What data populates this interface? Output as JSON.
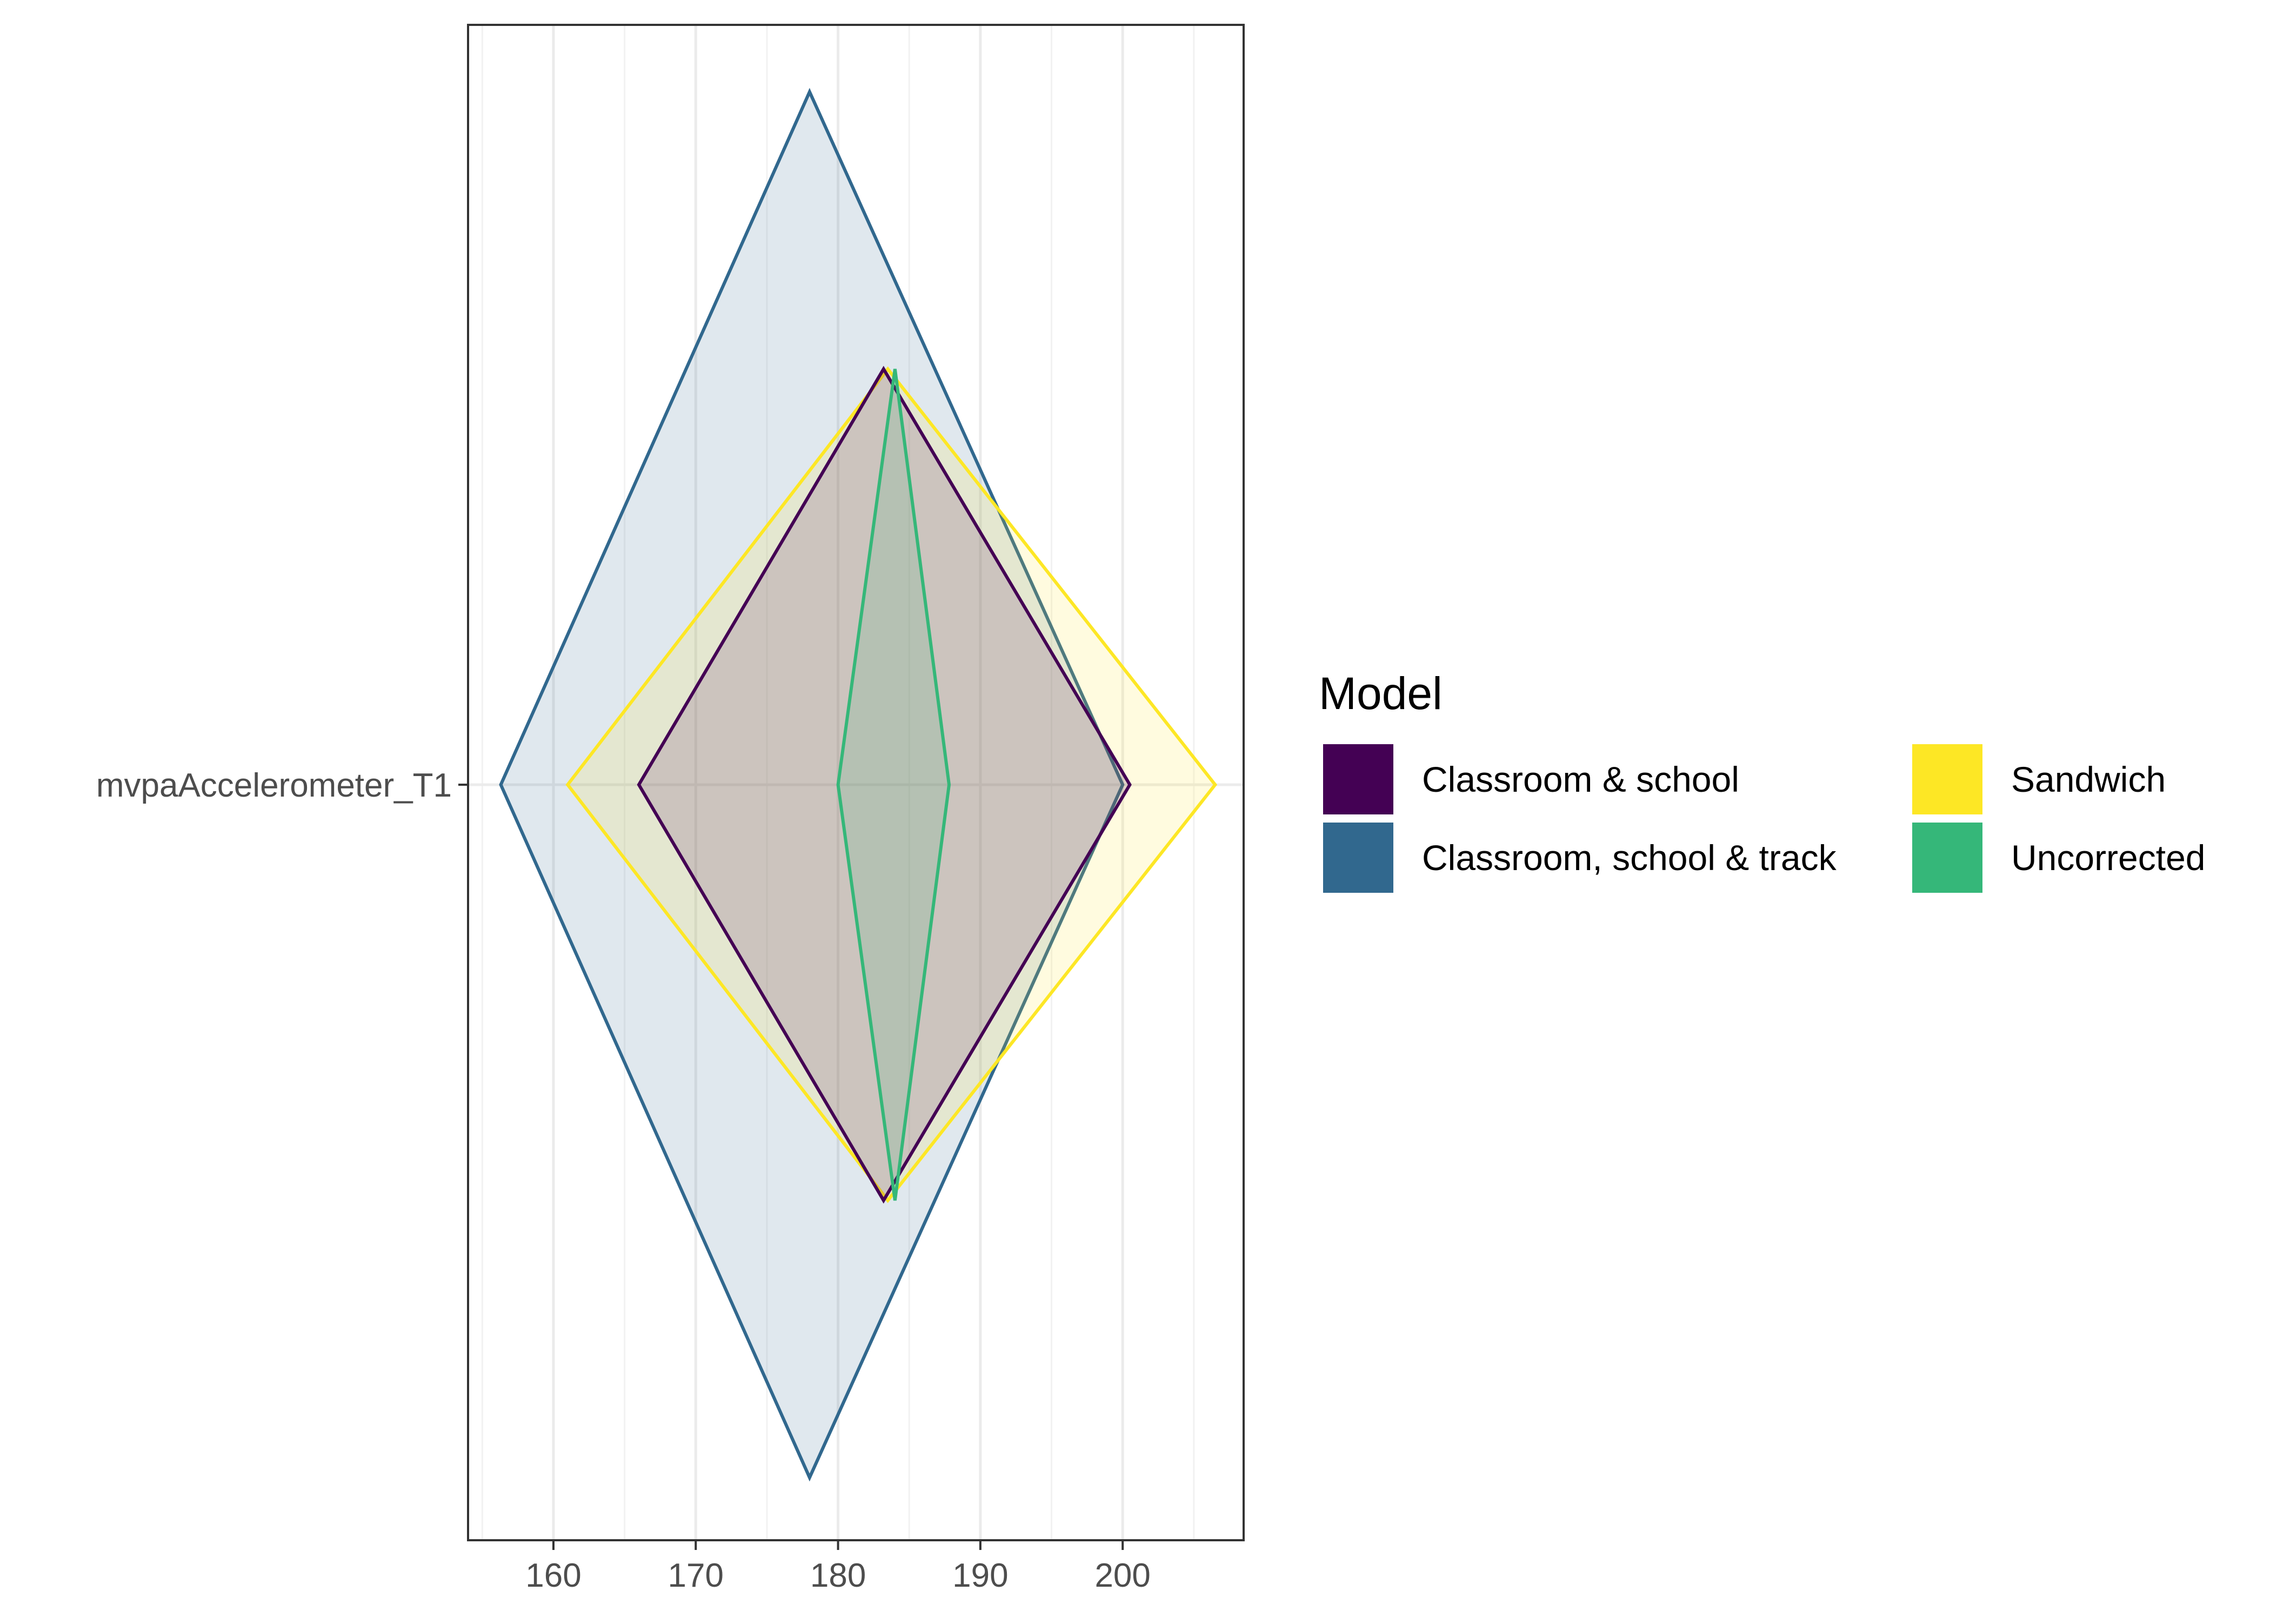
{
  "chart_data": {
    "type": "diamond",
    "category": "mvpaAccelerometer_T1",
    "xlim": [
      154,
      208.5
    ],
    "xticks": [
      160,
      170,
      180,
      190,
      200
    ],
    "grid": true,
    "legend": {
      "title": "Model",
      "placement": "right",
      "columns": 2
    },
    "series": [
      {
        "name": "Classroom, school & track",
        "color": "#31688E",
        "lower": 156.3,
        "estimate": 178.0,
        "upper": 200.0,
        "spread": 1.0
      },
      {
        "name": "Sandwich",
        "color": "#FDE725",
        "lower": 161.0,
        "estimate": 183.5,
        "upper": 206.5,
        "spread": 0.6
      },
      {
        "name": "Classroom & school",
        "color": "#440154",
        "lower": 166.0,
        "estimate": 183.2,
        "upper": 200.5,
        "spread": 0.6
      },
      {
        "name": "Uncorrected",
        "color": "#35B779",
        "lower": 180.0,
        "estimate": 184.0,
        "upper": 187.8,
        "spread": 0.6
      }
    ],
    "legend_order": [
      "Classroom & school",
      "Classroom, school & track",
      "Sandwich",
      "Uncorrected"
    ]
  }
}
